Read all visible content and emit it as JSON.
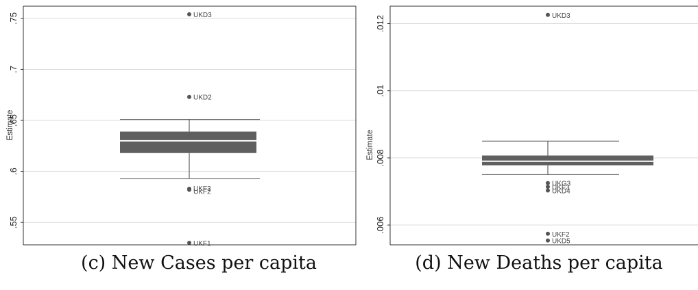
{
  "chart_data": [
    {
      "type": "boxplot",
      "panel": "c",
      "ylabel": "Estimate",
      "ylim": [
        0.528,
        0.762
      ],
      "yticks": [
        ".55",
        ".6",
        ".65",
        ".7",
        ".75"
      ],
      "ytick_values": [
        0.55,
        0.6,
        0.65,
        0.7,
        0.75
      ],
      "box": {
        "whisker_low": 0.593,
        "q1": 0.618,
        "median": 0.63,
        "q3": 0.639,
        "whisker_high": 0.651
      },
      "outliers": [
        {
          "label": "UKD3",
          "value": 0.754
        },
        {
          "label": "UKD2",
          "value": 0.673
        },
        {
          "label": "UKF3",
          "value": 0.583
        },
        {
          "label": "UKF2",
          "value": 0.582
        },
        {
          "label": "UKF1",
          "value": 0.53
        }
      ],
      "colors": {
        "box": "#5f5f5f",
        "median": "#ffffff",
        "whisker": "#5f5f5f",
        "outlier": "#555555",
        "grid": "#dcdcdc"
      }
    },
    {
      "type": "boxplot",
      "panel": "d",
      "ylabel": "Estimate",
      "ylim": [
        0.00541,
        0.01252
      ],
      "yticks": [
        ".006",
        ".008",
        ".01",
        ".012"
      ],
      "ytick_values": [
        0.006,
        0.008,
        0.01,
        0.012
      ],
      "box": {
        "whisker_low": 0.0075,
        "q1": 0.00778,
        "median": 0.0079,
        "q3": 0.00807,
        "whisker_high": 0.0085
      },
      "outliers": [
        {
          "label": "UKD3",
          "value": 0.01226
        },
        {
          "label": "UKG3",
          "value": 0.00725
        },
        {
          "label": "UKF3",
          "value": 0.00714
        },
        {
          "label": "UKD4",
          "value": 0.00703
        },
        {
          "label": "UKF2",
          "value": 0.00574
        },
        {
          "label": "UKD5",
          "value": 0.00554
        }
      ],
      "colors": {
        "box": "#5f5f5f",
        "median": "#ffffff",
        "whisker": "#5f5f5f",
        "outlier": "#555555",
        "grid": "#dcdcdc"
      }
    }
  ],
  "captions": {
    "c": "(c) New Cases per capita",
    "d": "(d) New Deaths per capita"
  }
}
